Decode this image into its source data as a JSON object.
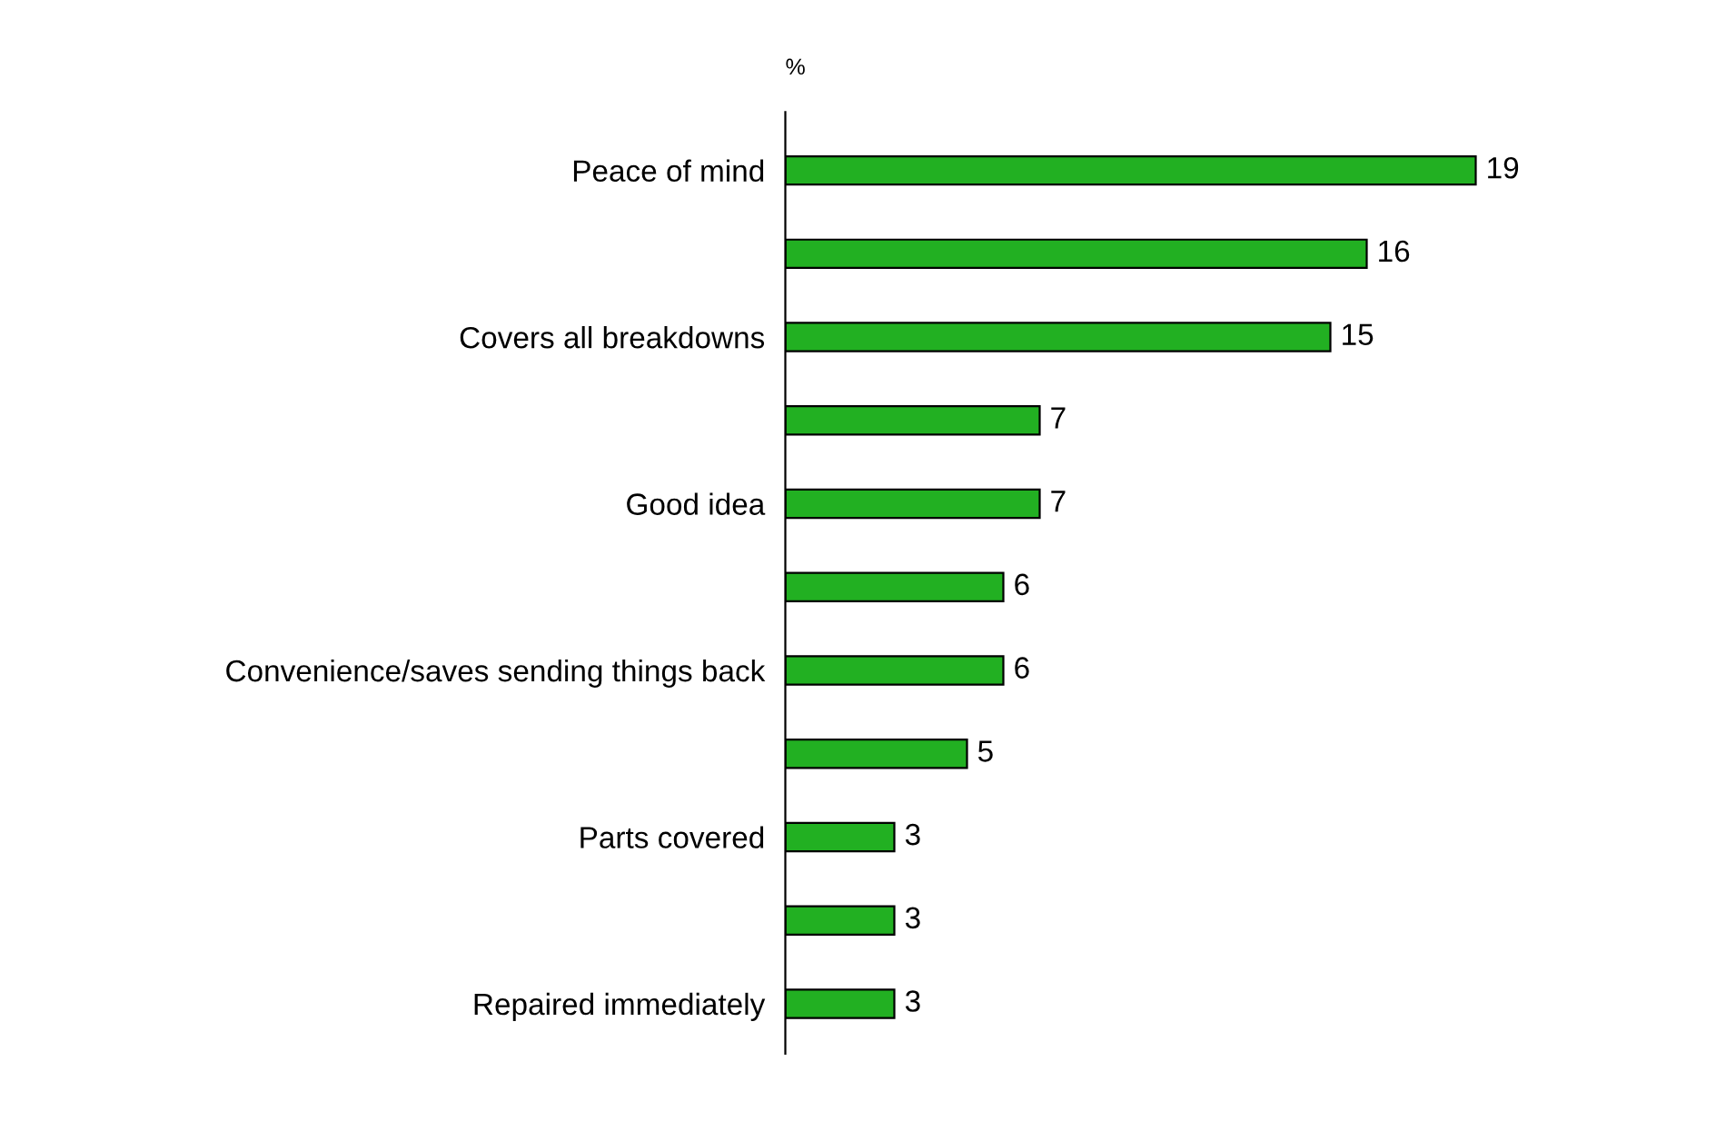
{
  "chart_data": {
    "type": "bar",
    "orientation": "horizontal",
    "categories": [
      "Peace of mind",
      null,
      "Covers all breakdowns",
      null,
      "Good idea",
      null,
      "Convenience/saves sending things back",
      null,
      "Parts covered",
      null,
      "Repaired immediately"
    ],
    "values": [
      19,
      16,
      15,
      7,
      7,
      6,
      6,
      5,
      3,
      3,
      3
    ],
    "color": "#22b022",
    "data_labels": true,
    "grid": false,
    "annotations": [
      "%"
    ]
  }
}
